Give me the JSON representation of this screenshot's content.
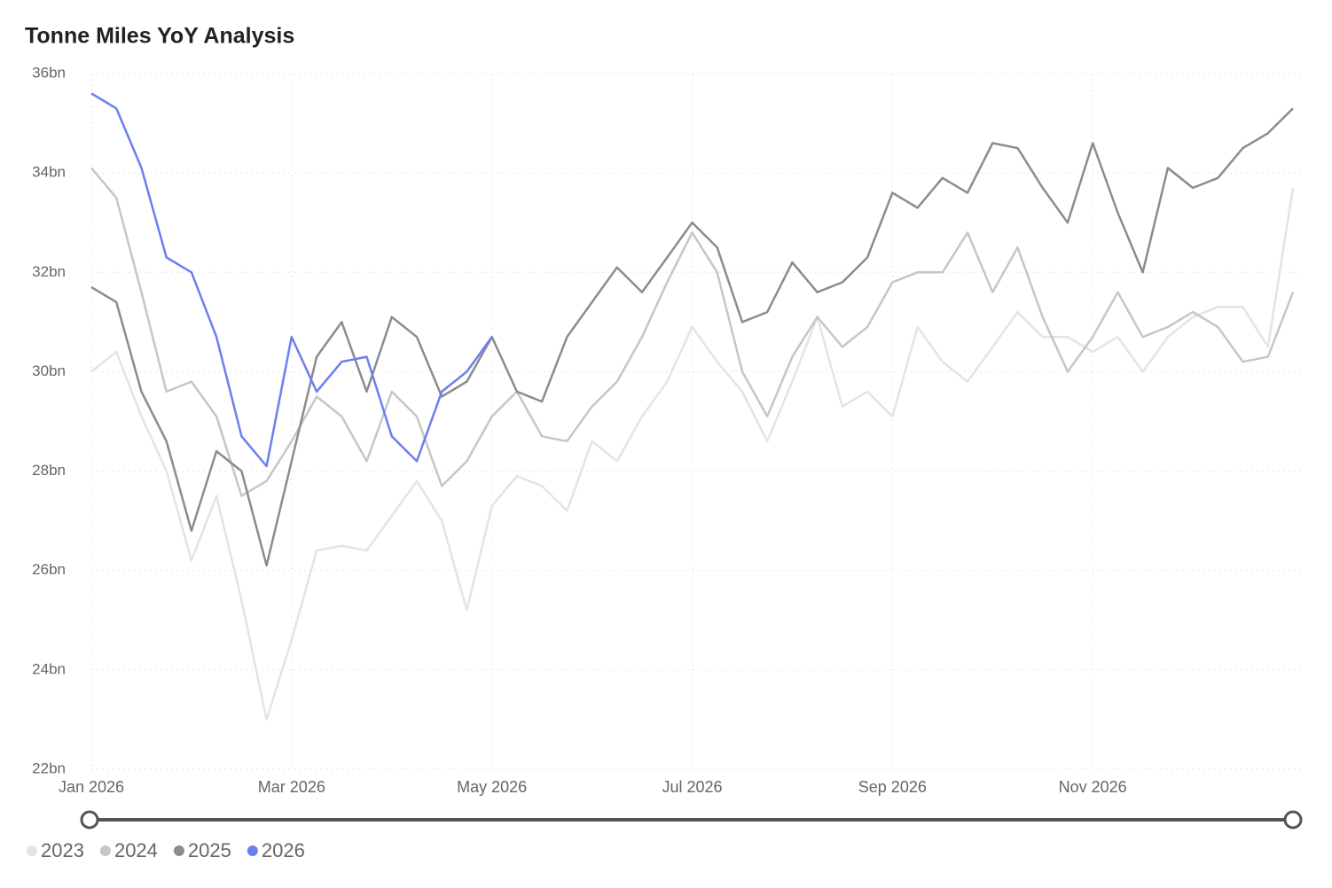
{
  "chart_data": {
    "type": "line",
    "title": "Tonne Miles YoY Analysis",
    "categories": [
      "Jan 2026",
      null,
      null,
      null,
      null,
      null,
      null,
      null,
      "Mar 2026",
      null,
      null,
      null,
      null,
      null,
      null,
      null,
      "May 2026",
      null,
      null,
      null,
      null,
      null,
      null,
      null,
      "Jul 2026",
      null,
      null,
      null,
      null,
      null,
      null,
      null,
      "Sep 2026",
      null,
      null,
      null,
      null,
      null,
      null,
      null,
      "Nov 2026",
      null,
      null,
      null,
      null,
      null,
      null,
      null,
      null
    ],
    "ylim": [
      22,
      36
    ],
    "yticks": [
      {
        "value": 22,
        "label": "22bn"
      },
      {
        "value": 24,
        "label": "24bn"
      },
      {
        "value": 26,
        "label": "26bn"
      },
      {
        "value": 28,
        "label": "28bn"
      },
      {
        "value": 30,
        "label": "30bn"
      },
      {
        "value": 32,
        "label": "32bn"
      },
      {
        "value": 34,
        "label": "34bn"
      },
      {
        "value": 36,
        "label": "36bn"
      }
    ],
    "grid": true,
    "series": [
      {
        "name": "2023",
        "color": "#e4e4e4",
        "values": [
          30.0,
          30.4,
          29.1,
          28.0,
          26.2,
          27.5,
          25.4,
          23.0,
          24.6,
          26.4,
          26.5,
          26.4,
          27.1,
          27.8,
          27.0,
          25.2,
          27.3,
          27.9,
          27.7,
          27.2,
          28.6,
          28.2,
          29.1,
          29.8,
          30.9,
          30.2,
          29.6,
          28.6,
          29.8,
          31.1,
          29.3,
          29.6,
          29.1,
          30.9,
          30.2,
          29.8,
          30.5,
          31.2,
          30.7,
          30.7,
          30.4,
          30.7,
          30.0,
          30.7,
          31.1,
          31.3,
          31.3,
          30.5,
          33.7
        ]
      },
      {
        "name": "2024",
        "color": "#c6c6c6",
        "values": [
          34.1,
          33.5,
          31.6,
          29.6,
          29.8,
          29.1,
          27.5,
          27.8,
          28.6,
          29.5,
          29.1,
          28.2,
          29.6,
          29.1,
          27.7,
          28.2,
          29.1,
          29.6,
          28.7,
          28.6,
          29.3,
          29.8,
          30.7,
          31.8,
          32.8,
          32.0,
          30.0,
          29.1,
          30.3,
          31.1,
          30.5,
          30.9,
          31.8,
          32.0,
          32.0,
          32.8,
          31.6,
          32.5,
          31.1,
          30.0,
          30.7,
          31.6,
          30.7,
          30.9,
          31.2,
          30.9,
          30.2,
          30.3,
          31.6
        ]
      },
      {
        "name": "2025",
        "color": "#8c8c8c",
        "values": [
          31.7,
          31.4,
          29.6,
          28.6,
          26.8,
          28.4,
          28.0,
          26.1,
          28.2,
          30.3,
          31.0,
          29.6,
          31.1,
          30.7,
          29.5,
          29.8,
          30.7,
          29.6,
          29.4,
          30.7,
          31.4,
          32.1,
          31.6,
          32.3,
          33.0,
          32.5,
          31.0,
          31.2,
          32.2,
          31.6,
          31.8,
          32.3,
          33.6,
          33.3,
          33.9,
          33.6,
          34.6,
          34.5,
          33.7,
          33.0,
          34.6,
          33.2,
          32.0,
          34.1,
          33.7,
          33.9,
          34.5,
          34.8,
          35.3
        ]
      },
      {
        "name": "2026",
        "color": "#6b7ff0",
        "values": [
          35.6,
          35.3,
          34.1,
          32.3,
          32.0,
          30.7,
          28.7,
          28.1,
          30.7,
          29.6,
          30.2,
          30.3,
          28.7,
          28.2,
          29.6,
          30.0,
          30.7,
          null,
          null,
          null,
          null,
          null,
          null,
          null,
          null,
          null,
          null,
          null,
          null,
          null,
          null,
          null,
          null,
          null,
          null,
          null,
          null,
          null,
          null,
          null,
          null,
          null,
          null,
          null,
          null,
          null,
          null,
          null,
          null
        ]
      }
    ]
  }
}
